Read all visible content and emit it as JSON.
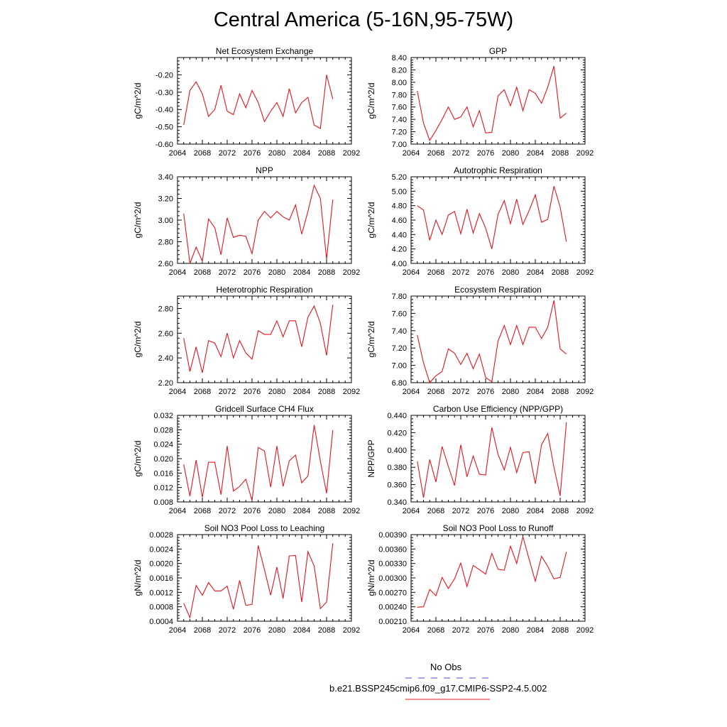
{
  "title": "Central America (5-16N,95-75W)",
  "legend": {
    "obs_label": "No Obs",
    "obs_color": "#4a4ad8",
    "model_label": "b.e21.BSSP245cmip6.f09_g17.CMIP6-SSP2-4.5.002",
    "model_color": "#e8141e"
  },
  "chart_data": [
    {
      "type": "line",
      "title": "Net Ecosystem Exchange",
      "ylabel": "gC/m^2/d",
      "xlim": [
        2064,
        2092
      ],
      "ylim": [
        -0.6,
        -0.1
      ],
      "xticks": [
        2064,
        2068,
        2072,
        2076,
        2080,
        2084,
        2088,
        2092
      ],
      "yticks": [
        -0.6,
        -0.5,
        -0.4,
        -0.3,
        -0.2
      ],
      "ytick_labels": [
        "-0.60",
        "-0.50",
        "-0.40",
        "-0.30",
        "-0.20"
      ],
      "series": [
        {
          "x": [
            2065,
            2066,
            2067,
            2068,
            2069,
            2070,
            2071,
            2072,
            2073,
            2074,
            2075,
            2076,
            2077,
            2078,
            2079,
            2080,
            2081,
            2082,
            2083,
            2084,
            2085,
            2086,
            2087,
            2088,
            2089
          ],
          "y": [
            -0.49,
            -0.29,
            -0.24,
            -0.31,
            -0.44,
            -0.4,
            -0.26,
            -0.41,
            -0.43,
            -0.31,
            -0.39,
            -0.29,
            -0.36,
            -0.47,
            -0.41,
            -0.36,
            -0.44,
            -0.28,
            -0.42,
            -0.36,
            -0.33,
            -0.49,
            -0.51,
            -0.2,
            -0.34
          ]
        }
      ]
    },
    {
      "type": "line",
      "title": "GPP",
      "ylabel": "gC/m^2/d",
      "xlim": [
        2064,
        2092
      ],
      "ylim": [
        7.0,
        8.4
      ],
      "xticks": [
        2064,
        2068,
        2072,
        2076,
        2080,
        2084,
        2088,
        2092
      ],
      "yticks": [
        7.0,
        7.2,
        7.4,
        7.6,
        7.8,
        8.0,
        8.2,
        8.4
      ],
      "ytick_labels": [
        "7.00",
        "7.20",
        "7.40",
        "7.60",
        "7.80",
        "8.00",
        "8.20",
        "8.40"
      ],
      "series": [
        {
          "x": [
            2065,
            2066,
            2067,
            2068,
            2069,
            2070,
            2071,
            2072,
            2073,
            2074,
            2075,
            2076,
            2077,
            2078,
            2079,
            2080,
            2081,
            2082,
            2083,
            2084,
            2085,
            2086,
            2087,
            2088,
            2089
          ],
          "y": [
            7.86,
            7.34,
            7.06,
            7.22,
            7.4,
            7.6,
            7.4,
            7.44,
            7.6,
            7.28,
            7.54,
            7.18,
            7.19,
            7.78,
            7.88,
            7.62,
            7.92,
            7.54,
            7.88,
            7.82,
            7.66,
            7.92,
            8.26,
            7.42,
            7.5
          ]
        }
      ]
    },
    {
      "type": "line",
      "title": "NPP",
      "ylabel": "gC/m^2/d",
      "xlim": [
        2064,
        2092
      ],
      "ylim": [
        2.6,
        3.4
      ],
      "xticks": [
        2064,
        2068,
        2072,
        2076,
        2080,
        2084,
        2088,
        2092
      ],
      "yticks": [
        2.6,
        2.8,
        3.0,
        3.2,
        3.4
      ],
      "ytick_labels": [
        "2.60",
        "2.80",
        "3.00",
        "3.20",
        "3.40"
      ],
      "series": [
        {
          "x": [
            2065,
            2066,
            2067,
            2068,
            2069,
            2070,
            2071,
            2072,
            2073,
            2074,
            2075,
            2076,
            2077,
            2078,
            2079,
            2080,
            2081,
            2082,
            2083,
            2084,
            2085,
            2086,
            2087,
            2088,
            2089
          ],
          "y": [
            3.06,
            2.6,
            2.75,
            2.62,
            3.01,
            2.93,
            2.68,
            3.02,
            2.84,
            2.86,
            2.85,
            2.69,
            3.0,
            3.08,
            3.02,
            3.08,
            3.03,
            3.0,
            3.14,
            2.87,
            3.08,
            3.32,
            3.2,
            2.64,
            3.19
          ]
        }
      ]
    },
    {
      "type": "line",
      "title": "Autotrophic Respiration",
      "ylabel": "gC/m^2/d",
      "xlim": [
        2064,
        2092
      ],
      "ylim": [
        4.0,
        5.2
      ],
      "xticks": [
        2064,
        2068,
        2072,
        2076,
        2080,
        2084,
        2088,
        2092
      ],
      "yticks": [
        4.0,
        4.2,
        4.4,
        4.6,
        4.8,
        5.0,
        5.2
      ],
      "ytick_labels": [
        "4.00",
        "4.20",
        "4.40",
        "4.60",
        "4.80",
        "5.00",
        "5.20"
      ],
      "series": [
        {
          "x": [
            2065,
            2066,
            2067,
            2068,
            2069,
            2070,
            2071,
            2072,
            2073,
            2074,
            2075,
            2076,
            2077,
            2078,
            2079,
            2080,
            2081,
            2082,
            2083,
            2084,
            2085,
            2086,
            2087,
            2088,
            2089
          ],
          "y": [
            4.8,
            4.74,
            4.32,
            4.6,
            4.4,
            4.67,
            4.72,
            4.41,
            4.75,
            4.42,
            4.69,
            4.49,
            4.2,
            4.68,
            4.87,
            4.55,
            4.89,
            4.54,
            4.73,
            4.95,
            4.57,
            4.61,
            5.07,
            4.78,
            4.3
          ]
        }
      ]
    },
    {
      "type": "line",
      "title": "Heterotrophic Respiration",
      "ylabel": "gC/m^2/d",
      "xlim": [
        2064,
        2092
      ],
      "ylim": [
        2.2,
        2.9
      ],
      "xticks": [
        2064,
        2068,
        2072,
        2076,
        2080,
        2084,
        2088,
        2092
      ],
      "yticks": [
        2.2,
        2.4,
        2.6,
        2.8
      ],
      "ytick_labels": [
        "2.20",
        "2.40",
        "2.60",
        "2.80"
      ],
      "series": [
        {
          "x": [
            2065,
            2066,
            2067,
            2068,
            2069,
            2070,
            2071,
            2072,
            2073,
            2074,
            2075,
            2076,
            2077,
            2078,
            2079,
            2080,
            2081,
            2082,
            2083,
            2084,
            2085,
            2086,
            2087,
            2088,
            2089
          ],
          "y": [
            2.56,
            2.29,
            2.49,
            2.28,
            2.54,
            2.52,
            2.41,
            2.6,
            2.4,
            2.54,
            2.44,
            2.39,
            2.62,
            2.59,
            2.59,
            2.7,
            2.57,
            2.7,
            2.7,
            2.49,
            2.73,
            2.82,
            2.68,
            2.42,
            2.83
          ]
        }
      ]
    },
    {
      "type": "line",
      "title": "Ecosystem Respiration",
      "ylabel": "gC/m^2/d",
      "xlim": [
        2064,
        2092
      ],
      "ylim": [
        6.8,
        7.8
      ],
      "xticks": [
        2064,
        2068,
        2072,
        2076,
        2080,
        2084,
        2088,
        2092
      ],
      "yticks": [
        6.8,
        7.0,
        7.2,
        7.4,
        7.6,
        7.8
      ],
      "ytick_labels": [
        "6.80",
        "7.00",
        "7.20",
        "7.40",
        "7.60",
        "7.80"
      ],
      "series": [
        {
          "x": [
            2065,
            2066,
            2067,
            2068,
            2069,
            2070,
            2071,
            2072,
            2073,
            2074,
            2075,
            2076,
            2077,
            2078,
            2079,
            2080,
            2081,
            2082,
            2083,
            2084,
            2085,
            2086,
            2087,
            2088,
            2089
          ],
          "y": [
            7.35,
            7.03,
            6.8,
            6.88,
            6.93,
            7.19,
            7.14,
            7.01,
            7.14,
            6.96,
            7.13,
            6.86,
            6.81,
            7.28,
            7.46,
            7.24,
            7.46,
            7.24,
            7.44,
            7.44,
            7.31,
            7.44,
            7.75,
            7.19,
            7.13
          ]
        }
      ]
    },
    {
      "type": "line",
      "title": "Gridcell Surface CH4 Flux",
      "ylabel": "gC/m^2/d",
      "xlim": [
        2064,
        2092
      ],
      "ylim": [
        0.008,
        0.032
      ],
      "xticks": [
        2064,
        2068,
        2072,
        2076,
        2080,
        2084,
        2088,
        2092
      ],
      "yticks": [
        0.008,
        0.012,
        0.016,
        0.02,
        0.024,
        0.028,
        0.032
      ],
      "ytick_labels": [
        "0.008",
        "0.012",
        "0.016",
        "0.020",
        "0.024",
        "0.028",
        "0.032"
      ],
      "series": [
        {
          "x": [
            2065,
            2066,
            2067,
            2068,
            2069,
            2070,
            2071,
            2072,
            2073,
            2074,
            2075,
            2076,
            2077,
            2078,
            2079,
            2080,
            2081,
            2082,
            2083,
            2084,
            2085,
            2086,
            2087,
            2088,
            2089
          ],
          "y": [
            0.0184,
            0.0096,
            0.0196,
            0.0093,
            0.019,
            0.019,
            0.01,
            0.0235,
            0.011,
            0.0123,
            0.0143,
            0.0084,
            0.0231,
            0.0221,
            0.0121,
            0.0235,
            0.0123,
            0.0194,
            0.021,
            0.0133,
            0.0152,
            0.0293,
            0.0193,
            0.0104,
            0.0279
          ]
        }
      ]
    },
    {
      "type": "line",
      "title": "Carbon Use Efficiency (NPP/GPP)",
      "ylabel": "NPP/GPP",
      "xlim": [
        2064,
        2092
      ],
      "ylim": [
        0.34,
        0.44
      ],
      "xticks": [
        2064,
        2068,
        2072,
        2076,
        2080,
        2084,
        2088,
        2092
      ],
      "yticks": [
        0.34,
        0.36,
        0.38,
        0.4,
        0.42,
        0.44
      ],
      "ytick_labels": [
        "0.340",
        "0.360",
        "0.380",
        "0.400",
        "0.420",
        "0.440"
      ],
      "series": [
        {
          "x": [
            2065,
            2066,
            2067,
            2068,
            2069,
            2070,
            2071,
            2072,
            2073,
            2074,
            2075,
            2076,
            2077,
            2078,
            2079,
            2080,
            2081,
            2082,
            2083,
            2084,
            2085,
            2086,
            2087,
            2088,
            2089
          ],
          "y": [
            0.387,
            0.345,
            0.389,
            0.363,
            0.404,
            0.381,
            0.359,
            0.406,
            0.369,
            0.393,
            0.372,
            0.371,
            0.426,
            0.395,
            0.377,
            0.403,
            0.374,
            0.397,
            0.398,
            0.361,
            0.406,
            0.419,
            0.38,
            0.347,
            0.432
          ]
        }
      ]
    },
    {
      "type": "line",
      "title": "Soil NO3 Pool Loss to Leaching",
      "ylabel": "gN/m^2/d",
      "xlim": [
        2064,
        2092
      ],
      "ylim": [
        0.0004,
        0.0028
      ],
      "xticks": [
        2064,
        2068,
        2072,
        2076,
        2080,
        2084,
        2088,
        2092
      ],
      "yticks": [
        0.0004,
        0.0008,
        0.0012,
        0.0016,
        0.002,
        0.0024,
        0.0028
      ],
      "ytick_labels": [
        "0.0004",
        "0.0008",
        "0.0012",
        "0.0016",
        "0.0020",
        "0.0024",
        "0.0028"
      ],
      "series": [
        {
          "x": [
            2065,
            2066,
            2067,
            2068,
            2069,
            2070,
            2071,
            2072,
            2073,
            2074,
            2075,
            2076,
            2077,
            2078,
            2079,
            2080,
            2081,
            2082,
            2083,
            2084,
            2085,
            2086,
            2087,
            2088,
            2089
          ],
          "y": [
            0.0009,
            0.0005,
            0.00139,
            0.00112,
            0.00147,
            0.00124,
            0.00124,
            0.00137,
            0.00073,
            0.00153,
            0.00084,
            0.00087,
            0.0025,
            0.00183,
            0.00112,
            0.0019,
            0.00103,
            0.00221,
            0.00222,
            0.00093,
            0.00233,
            0.00193,
            0.00075,
            0.00093,
            0.00256
          ]
        }
      ]
    },
    {
      "type": "line",
      "title": "Soil NO3 Pool Loss to Runoff",
      "ylabel": "gN/m^2/d",
      "xlim": [
        2064,
        2092
      ],
      "ylim": [
        0.0021,
        0.0039
      ],
      "xticks": [
        2064,
        2068,
        2072,
        2076,
        2080,
        2084,
        2088,
        2092
      ],
      "yticks": [
        0.0021,
        0.0024,
        0.0027,
        0.003,
        0.0033,
        0.0036,
        0.0039
      ],
      "ytick_labels": [
        "0.00210",
        "0.00240",
        "0.00270",
        "0.00300",
        "0.00330",
        "0.00360",
        "0.00390"
      ],
      "series": [
        {
          "x": [
            2065,
            2066,
            2067,
            2068,
            2069,
            2070,
            2071,
            2072,
            2073,
            2074,
            2075,
            2076,
            2077,
            2078,
            2079,
            2080,
            2081,
            2082,
            2083,
            2084,
            2085,
            2086,
            2087,
            2088,
            2089
          ],
          "y": [
            0.00239,
            0.0024,
            0.00276,
            0.00263,
            0.00301,
            0.00278,
            0.00298,
            0.00331,
            0.00282,
            0.00326,
            0.00317,
            0.00308,
            0.00351,
            0.00318,
            0.00316,
            0.00366,
            0.0033,
            0.00386,
            0.00339,
            0.00293,
            0.00345,
            0.00324,
            0.00298,
            0.00301,
            0.00354
          ]
        }
      ]
    }
  ]
}
